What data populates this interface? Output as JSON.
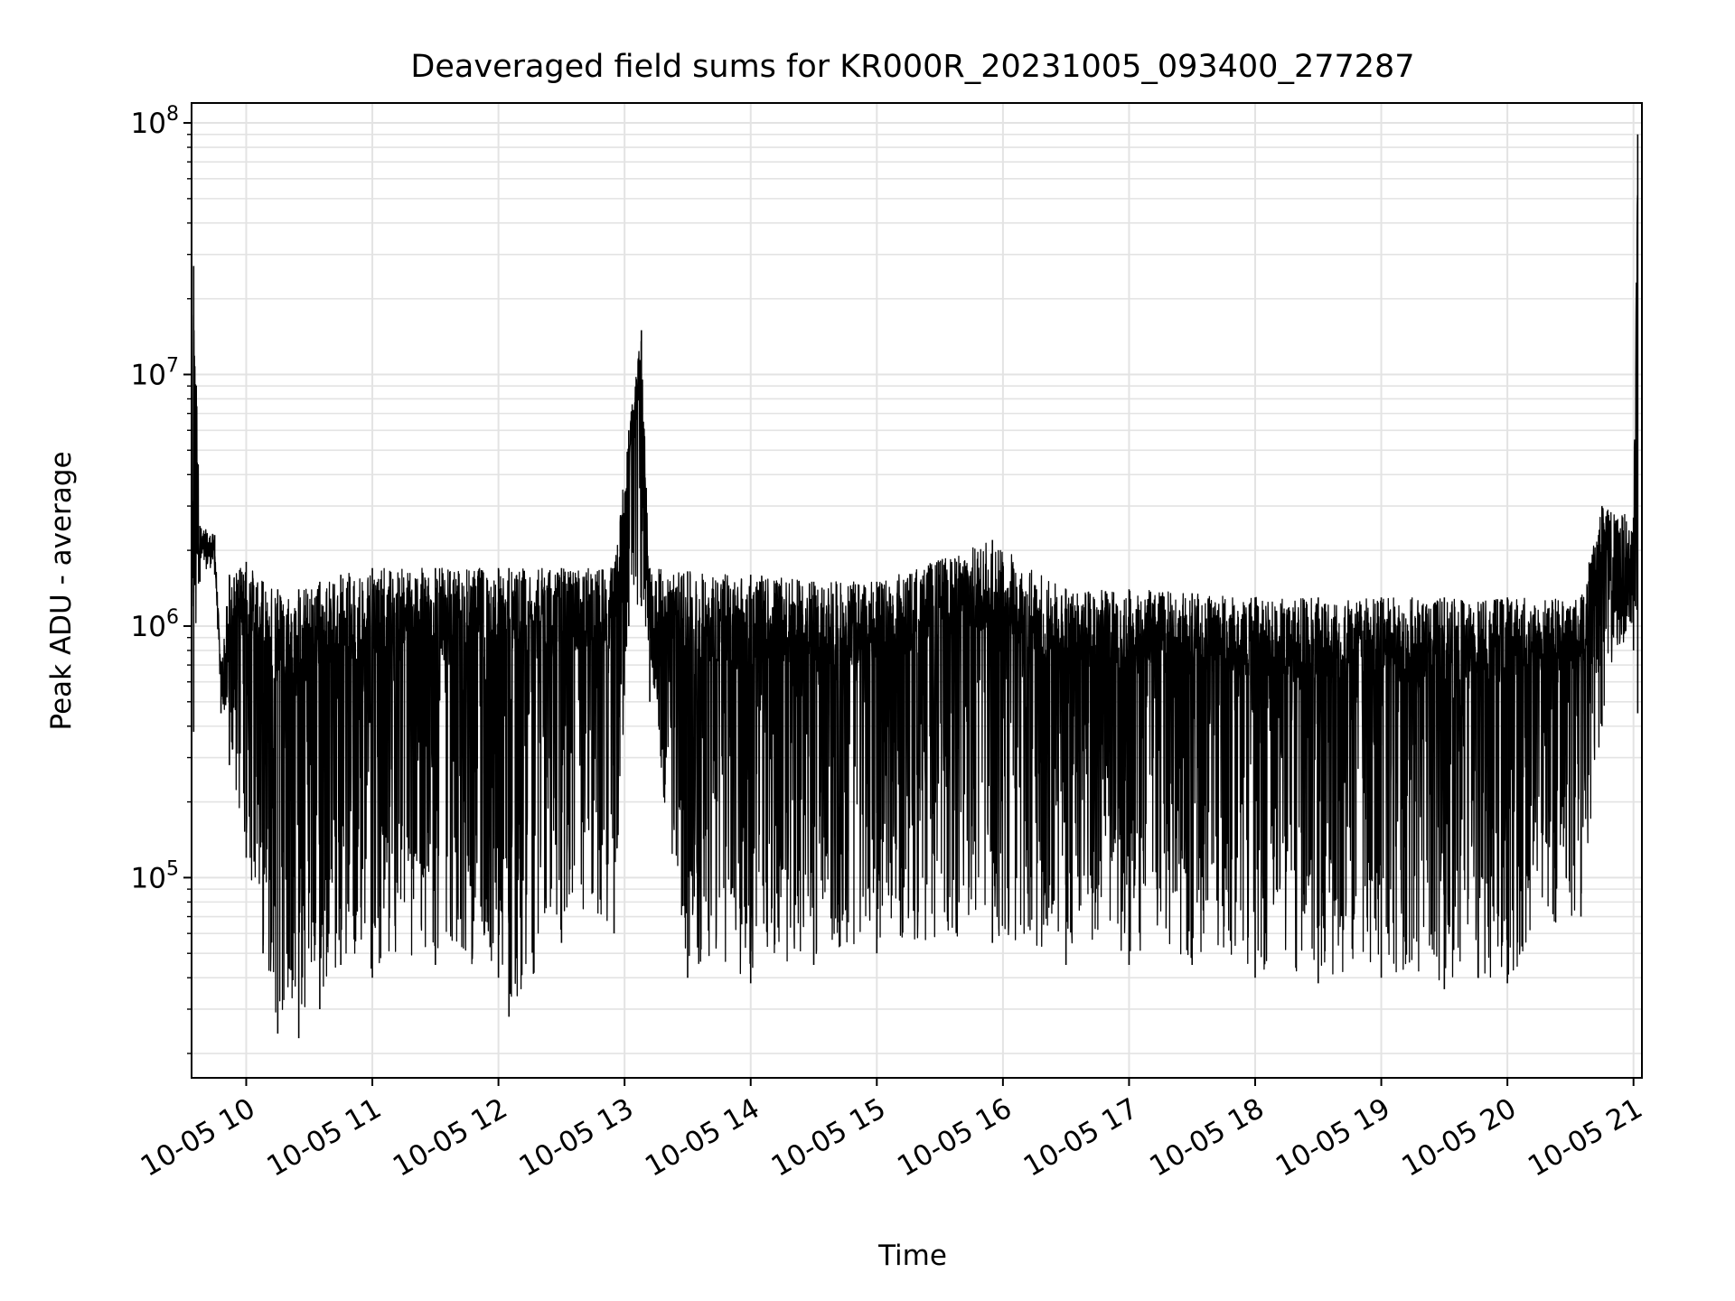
{
  "chart_data": {
    "type": "line",
    "title": "Deaveraged field sums for KR000R_20231005_093400_277287",
    "xlabel": "Time",
    "ylabel": "Peak ADU - average",
    "yscale": "log",
    "ylim": [
      16000,
      120000000
    ],
    "xlim": [
      "2023-10-05 09:34",
      "2023-10-05 21:04"
    ],
    "grid": true,
    "x_tick_labels": [
      "10-05 10",
      "10-05 11",
      "10-05 12",
      "10-05 13",
      "10-05 14",
      "10-05 15",
      "10-05 16",
      "10-05 17",
      "10-05 18",
      "10-05 19",
      "10-05 20",
      "10-05 21"
    ],
    "y_tick_labels": [
      {
        "value": 100000,
        "base": "10",
        "exp": "5"
      },
      {
        "value": 1000000,
        "base": "10",
        "exp": "6"
      },
      {
        "value": 10000000,
        "base": "10",
        "exp": "7"
      },
      {
        "value": 100000000,
        "base": "10",
        "exp": "8"
      }
    ],
    "series": [
      {
        "color": "#000000",
        "envelope": [
          {
            "time": "2023-10-05 09:34",
            "min": 350000,
            "max": 1100000
          },
          {
            "time": "2023-10-05 09:35",
            "min": 380000,
            "max": 27000000
          },
          {
            "time": "2023-10-05 09:38",
            "min": 1500000,
            "max": 2500000
          },
          {
            "time": "2023-10-05 09:45",
            "min": 1600000,
            "max": 2300000
          },
          {
            "time": "2023-10-05 09:48",
            "min": 450000,
            "max": 700000
          },
          {
            "time": "2023-10-05 09:52",
            "min": 280000,
            "max": 1600000
          },
          {
            "time": "2023-10-05 10:00",
            "min": 120000,
            "max": 1800000
          },
          {
            "time": "2023-10-05 10:08",
            "min": 50000,
            "max": 1500000
          },
          {
            "time": "2023-10-05 10:15",
            "min": 24000,
            "max": 1400000
          },
          {
            "time": "2023-10-05 10:25",
            "min": 23000,
            "max": 1400000
          },
          {
            "time": "2023-10-05 10:35",
            "min": 30000,
            "max": 1500000
          },
          {
            "time": "2023-10-05 10:45",
            "min": 45000,
            "max": 1600000
          },
          {
            "time": "2023-10-05 11:00",
            "min": 40000,
            "max": 1700000
          },
          {
            "time": "2023-10-05 11:30",
            "min": 45000,
            "max": 1700000
          },
          {
            "time": "2023-10-05 12:00",
            "min": 40000,
            "max": 1700000
          },
          {
            "time": "2023-10-05 12:05",
            "min": 28000,
            "max": 1700000
          },
          {
            "time": "2023-10-05 12:30",
            "min": 55000,
            "max": 1700000
          },
          {
            "time": "2023-10-05 12:55",
            "min": 60000,
            "max": 1700000
          },
          {
            "time": "2023-10-05 13:02",
            "min": 1000000,
            "max": 6000000
          },
          {
            "time": "2023-10-05 13:08",
            "min": 1200000,
            "max": 15000000
          },
          {
            "time": "2023-10-05 13:12",
            "min": 500000,
            "max": 1700000
          },
          {
            "time": "2023-10-05 13:30",
            "min": 40000,
            "max": 1650000
          },
          {
            "time": "2023-10-05 14:00",
            "min": 38000,
            "max": 1600000
          },
          {
            "time": "2023-10-05 14:30",
            "min": 45000,
            "max": 1500000
          },
          {
            "time": "2023-10-05 15:00",
            "min": 50000,
            "max": 1500000
          },
          {
            "time": "2023-10-05 15:55",
            "min": 55000,
            "max": 2200000
          },
          {
            "time": "2023-10-05 16:30",
            "min": 45000,
            "max": 1400000
          },
          {
            "time": "2023-10-05 17:00",
            "min": 45000,
            "max": 1400000
          },
          {
            "time": "2023-10-05 17:30",
            "min": 45000,
            "max": 1350000
          },
          {
            "time": "2023-10-05 18:00",
            "min": 40000,
            "max": 1300000
          },
          {
            "time": "2023-10-05 18:30",
            "min": 38000,
            "max": 1300000
          },
          {
            "time": "2023-10-05 19:00",
            "min": 40000,
            "max": 1300000
          },
          {
            "time": "2023-10-05 19:30",
            "min": 36000,
            "max": 1300000
          },
          {
            "time": "2023-10-05 20:00",
            "min": 38000,
            "max": 1300000
          },
          {
            "time": "2023-10-05 20:35",
            "min": 70000,
            "max": 1300000
          },
          {
            "time": "2023-10-05 20:45",
            "min": 400000,
            "max": 3000000
          },
          {
            "time": "2023-10-05 21:00",
            "min": 800000,
            "max": 2700000
          },
          {
            "time": "2023-10-05 21:02",
            "min": 450000,
            "max": 90000000
          }
        ]
      }
    ]
  }
}
